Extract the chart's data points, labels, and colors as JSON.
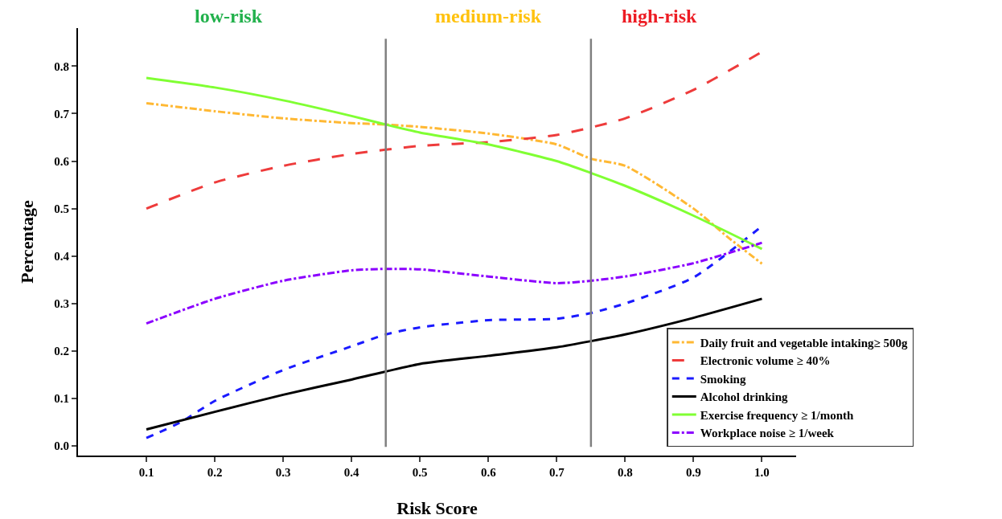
{
  "chart_data": {
    "type": "line",
    "xlabel": "Risk Score",
    "ylabel": "Percentage",
    "annotations": [
      "low-risk",
      "medium-risk",
      "high-risk"
    ],
    "xlim": [
      0,
      1.05
    ],
    "ylim": [
      -0.02,
      0.88
    ],
    "xticks": [
      0.1,
      0.2,
      0.3,
      0.4,
      0.5,
      0.6,
      0.7,
      0.8,
      0.9,
      {
        "value": 1,
        "label": "1.0"
      }
    ],
    "yticks": [
      {
        "value": 0,
        "label": "0.0"
      },
      0.1,
      0.2,
      0.3,
      0.4,
      0.5,
      0.6,
      0.7,
      0.8
    ],
    "grid": false,
    "legend": "bottom right",
    "marker": "none",
    "ref_lines": [
      {
        "axis": "x",
        "value": 0.45,
        "label": null,
        "color": "#808080"
      },
      {
        "axis": "x",
        "value": 0.75,
        "label": null,
        "color": "#808080"
      }
    ],
    "series": [
      {
        "name": "Daily fruit and vegetable intaking≥ 500g",
        "color": "#ffb833",
        "line_style": "dashdot",
        "x": [
          0.1,
          0.2,
          0.3,
          0.4,
          0.45,
          0.5,
          0.6,
          0.7,
          0.75,
          0.8,
          0.9,
          0.95,
          1.0
        ],
        "values": [
          0.722,
          0.705,
          0.69,
          0.68,
          0.677,
          0.672,
          0.658,
          0.635,
          0.605,
          0.59,
          0.5,
          0.44,
          0.384
        ]
      },
      {
        "name": "Electronic volume ≥ 40%",
        "color": "#ee3b3b",
        "line_style": "longdash",
        "x": [
          0.1,
          0.2,
          0.3,
          0.4,
          0.5,
          0.6,
          0.7,
          0.8,
          0.9,
          1.0
        ],
        "values": [
          0.5,
          0.555,
          0.59,
          0.615,
          0.632,
          0.64,
          0.655,
          0.69,
          0.75,
          0.83
        ]
      },
      {
        "name": "Smoking",
        "color": "#1a1aff",
        "line_style": "dashed",
        "x": [
          0.1,
          0.15,
          0.2,
          0.3,
          0.4,
          0.45,
          0.5,
          0.6,
          0.7,
          0.75,
          0.8,
          0.9,
          1.0
        ],
        "values": [
          0.017,
          0.05,
          0.095,
          0.16,
          0.21,
          0.235,
          0.25,
          0.265,
          0.268,
          0.28,
          0.3,
          0.355,
          0.463
        ]
      },
      {
        "name": "Alcohol drinking",
        "color": "#000000",
        "line_style": "solid",
        "x": [
          0.1,
          0.2,
          0.3,
          0.4,
          0.5,
          0.6,
          0.7,
          0.8,
          0.9,
          1.0
        ],
        "values": [
          0.035,
          0.072,
          0.108,
          0.14,
          0.173,
          0.19,
          0.208,
          0.235,
          0.27,
          0.31
        ]
      },
      {
        "name": "Exercise frequency ≥ 1/month",
        "color": "#80ff33",
        "line_style": "solid",
        "x": [
          0.1,
          0.2,
          0.3,
          0.4,
          0.45,
          0.5,
          0.6,
          0.7,
          0.75,
          0.8,
          0.9,
          1.0
        ],
        "values": [
          0.775,
          0.755,
          0.728,
          0.695,
          0.677,
          0.66,
          0.635,
          0.6,
          0.575,
          0.548,
          0.485,
          0.415
        ]
      },
      {
        "name": "Workplace noise ≥ 1/week",
        "color": "#8b00ff",
        "line_style": "dashdot",
        "x": [
          0.1,
          0.2,
          0.3,
          0.4,
          0.45,
          0.5,
          0.6,
          0.7,
          0.75,
          0.8,
          0.9,
          1.0
        ],
        "values": [
          0.258,
          0.31,
          0.348,
          0.37,
          0.373,
          0.372,
          0.357,
          0.343,
          0.348,
          0.357,
          0.385,
          0.428
        ]
      }
    ]
  }
}
